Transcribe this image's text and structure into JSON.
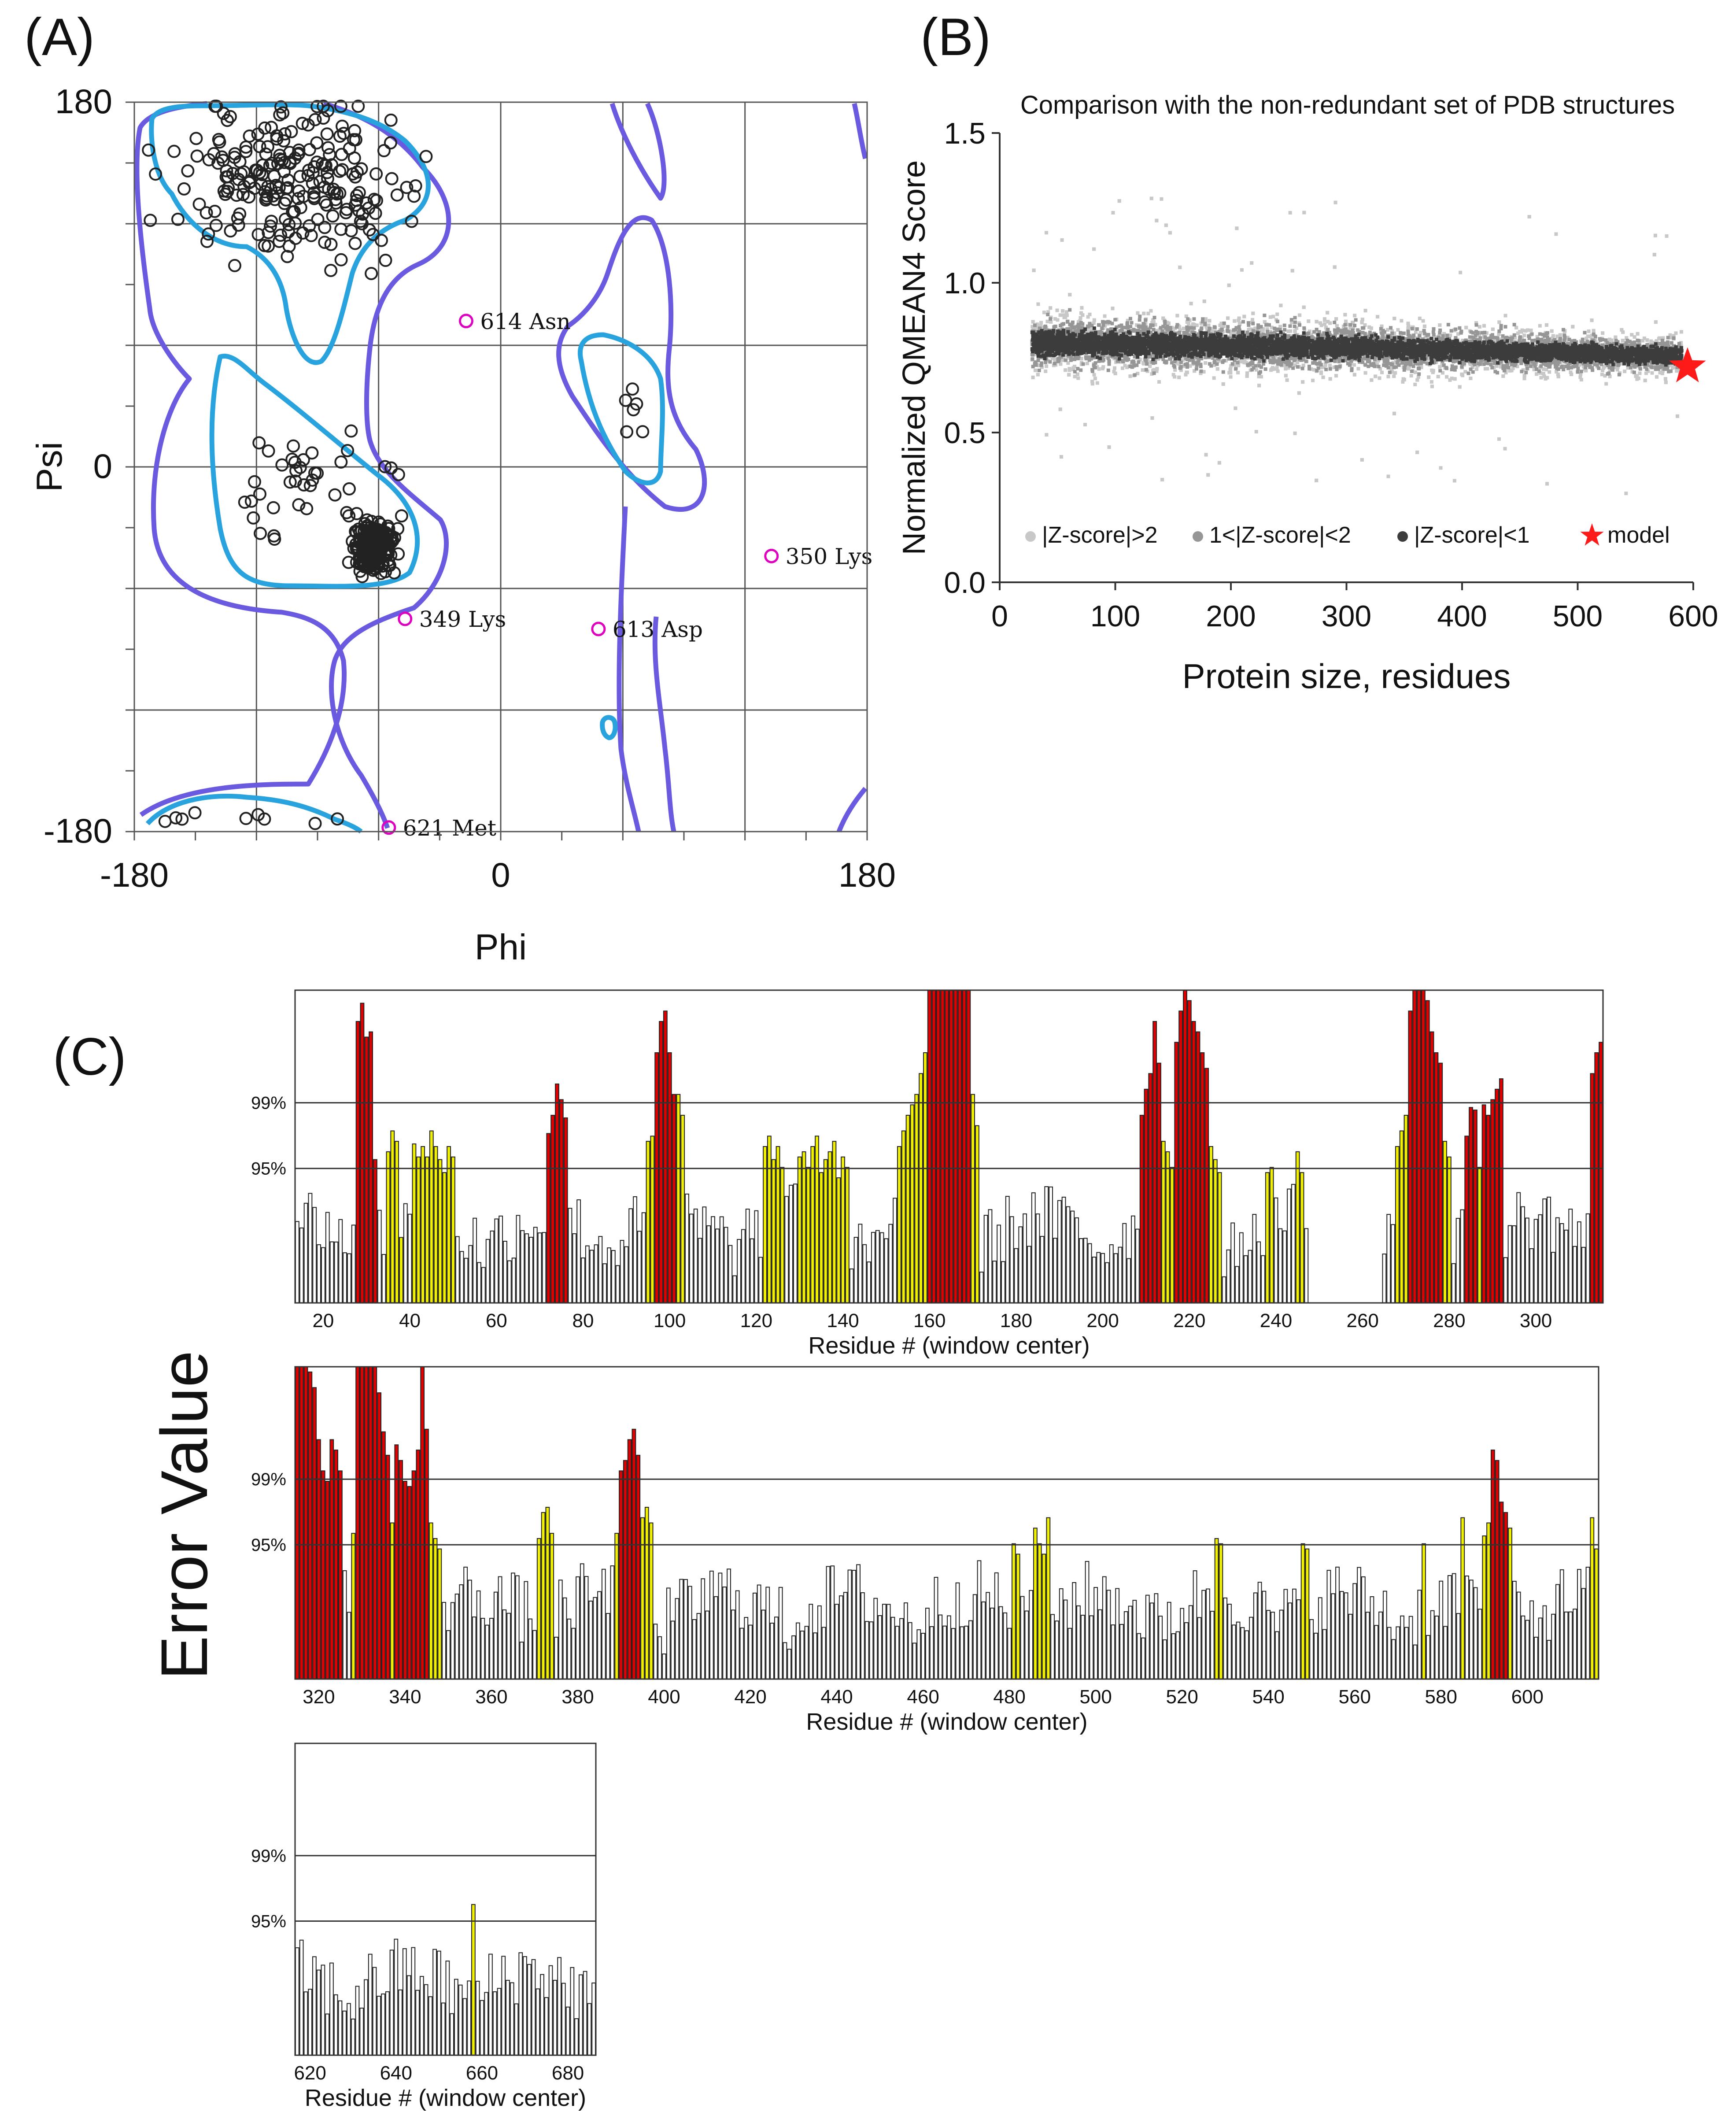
{
  "panel_labels": {
    "a": "(A)",
    "b": "(B)",
    "c": "(C)"
  },
  "chart_data": [
    {
      "id": "ramachandran",
      "type": "scatter",
      "title": "",
      "xlabel": "Phi",
      "ylabel": "Psi",
      "xlim": [
        -180,
        180
      ],
      "ylim": [
        -180,
        180
      ],
      "x_tick_labels": [
        "-180",
        "0",
        "180"
      ],
      "y_tick_labels": [
        "180",
        "0",
        "-180"
      ],
      "grid": true,
      "outlier_color": "#e000c0",
      "favored_contour_color": "#29a3dd",
      "allowed_contour_color": "#6a5ae0",
      "outliers": [
        {
          "phi": -17,
          "psi": 72,
          "label": "614 Asn"
        },
        {
          "phi": 133,
          "psi": -44,
          "label": "350 Lys"
        },
        {
          "phi": -47,
          "psi": -75,
          "label": "349 Lys"
        },
        {
          "phi": 48,
          "psi": -80,
          "label": "613 Asp"
        },
        {
          "phi": -55,
          "psi": -178,
          "label": "621 Met"
        }
      ],
      "clusters": [
        {
          "region": "beta",
          "phi_center": -100,
          "psi_center": 140,
          "phi_spread": 55,
          "psi_spread": 35,
          "count": 230
        },
        {
          "region": "alpha",
          "phi_center": -63,
          "psi_center": -40,
          "phi_spread": 10,
          "psi_spread": 12,
          "count": 200
        },
        {
          "region": "alpha-edge",
          "phi_center": -95,
          "psi_center": -10,
          "phi_spread": 40,
          "psi_spread": 28,
          "count": 40
        },
        {
          "region": "left-alpha",
          "phi_center": 65,
          "psi_center": 30,
          "phi_spread": 8,
          "psi_spread": 15,
          "count": 6
        },
        {
          "region": "bottom",
          "phi_center": -120,
          "psi_center": -172,
          "phi_spread": 45,
          "psi_spread": 5,
          "count": 9
        }
      ]
    },
    {
      "id": "qmean",
      "type": "scatter",
      "title": "Comparison with the non-redundant set of PDB structures",
      "xlabel": "Protein size, residues",
      "ylabel": "Normalized QMEAN4 Score",
      "xlim": [
        0,
        600
      ],
      "ylim": [
        0,
        1.5
      ],
      "x_tick_labels": [
        "0",
        "100",
        "200",
        "300",
        "400",
        "500",
        "600"
      ],
      "y_tick_labels": [
        "0.0",
        "0.5",
        "1.0",
        "1.5"
      ],
      "series": [
        {
          "name": "|Z-score|>2",
          "color": "#c8c8c8",
          "band_half_width": 0.16
        },
        {
          "name": "1<|Z-score|<2",
          "color": "#969696",
          "band_half_width": 0.11
        },
        {
          "name": "|Z-score|<1",
          "color": "#3c3c3c",
          "band_half_width": 0.055
        }
      ],
      "trend": {
        "x": [
          30,
          100,
          200,
          300,
          400,
          500,
          590
        ],
        "y": [
          0.8,
          0.795,
          0.79,
          0.785,
          0.775,
          0.765,
          0.755
        ]
      },
      "model": {
        "name": "model",
        "x": 595,
        "y": 0.72,
        "color": "#ff1a1a"
      }
    },
    {
      "id": "errat",
      "type": "bar",
      "ylabel": "Error Value",
      "xlabel": "Residue # (window center)",
      "threshold_labels": [
        "99%",
        "95%"
      ],
      "colors": {
        "low": "#ffffff",
        "mid": "#f0f000",
        "high": "#e00000"
      },
      "panels": [
        {
          "start": 14,
          "end": 315,
          "x_tick_labels": [
            "20",
            "40",
            "60",
            "80",
            "100",
            "120",
            "140",
            "160",
            "180",
            "200",
            "220",
            "240",
            "260",
            "280",
            "300"
          ],
          "x_ticks": [
            20,
            40,
            60,
            80,
            100,
            120,
            140,
            160,
            180,
            200,
            220,
            240,
            260,
            280,
            300
          ],
          "regions": [
            {
              "s": 28,
              "e": 32,
              "lvl": "high",
              "h": [
                108,
                115,
                102,
                104,
                55
              ]
            },
            {
              "s": 35,
              "e": 38,
              "lvl": "mid",
              "h": [
                58,
                66,
                62
              ]
            },
            {
              "s": 41,
              "e": 50,
              "lvl": "mid",
              "h": [
                61,
                56,
                60,
                56,
                66,
                60,
                55,
                50,
                60,
                56
              ]
            },
            {
              "s": 72,
              "e": 76,
              "lvl": "high",
              "h": [
                65,
                72,
                84,
                78,
                71
              ]
            },
            {
              "s": 95,
              "e": 96,
              "lvl": "mid",
              "h": [
                62,
                64
              ]
            },
            {
              "s": 97,
              "e": 101,
              "lvl": "high",
              "h": [
                96,
                108,
                112,
                96,
                80
              ]
            },
            {
              "s": 102,
              "e": 103,
              "lvl": "mid",
              "h": [
                80,
                72
              ]
            },
            {
              "s": 122,
              "e": 126,
              "lvl": "mid",
              "h": [
                60,
                64,
                55,
                60,
                52
              ]
            },
            {
              "s": 130,
              "e": 141,
              "lvl": "mid",
              "h": [
                56,
                58,
                52,
                60,
                64,
                50,
                55,
                58,
                62,
                48,
                56,
                52
              ]
            },
            {
              "s": 153,
              "e": 159,
              "lvl": "mid",
              "h": [
                60,
                66,
                72,
                76,
                80,
                88,
                96
              ]
            },
            {
              "s": 160,
              "e": 169,
              "lvl": "high",
              "h": [
                120,
                120,
                120,
                120,
                120,
                120,
                120,
                120,
                120,
                120
              ]
            },
            {
              "s": 170,
              "e": 171,
              "lvl": "mid",
              "h": [
                80,
                68
              ]
            },
            {
              "s": 209,
              "e": 213,
              "lvl": "high",
              "h": [
                72,
                82,
                88,
                108,
                92
              ]
            },
            {
              "s": 214,
              "e": 216,
              "lvl": "mid",
              "h": [
                62,
                58,
                52
              ]
            },
            {
              "s": 217,
              "e": 224,
              "lvl": "high",
              "h": [
                100,
                112,
                120,
                116,
                108,
                104,
                96,
                90
              ]
            },
            {
              "s": 225,
              "e": 227,
              "lvl": "mid",
              "h": [
                60,
                55,
                50
              ]
            },
            {
              "s": 238,
              "e": 239,
              "lvl": "mid",
              "h": [
                50,
                52
              ]
            },
            {
              "s": 245,
              "e": 246,
              "lvl": "mid",
              "h": [
                58,
                50
              ]
            },
            {
              "s": 248,
              "e": 264,
              "lvl": "gap",
              "h": []
            },
            {
              "s": 268,
              "e": 270,
              "lvl": "mid",
              "h": [
                60,
                66,
                72
              ]
            },
            {
              "s": 271,
              "e": 278,
              "lvl": "high",
              "h": [
                112,
                120,
                120,
                120,
                116,
                104,
                96,
                92
              ]
            },
            {
              "s": 279,
              "e": 280,
              "lvl": "mid",
              "h": [
                62,
                56
              ]
            },
            {
              "s": 284,
              "e": 286,
              "lvl": "high",
              "h": [
                64,
                75,
                74
              ]
            },
            {
              "s": 287,
              "e": 287,
              "lvl": "mid",
              "h": [
                52
              ]
            },
            {
              "s": 288,
              "e": 292,
              "lvl": "high",
              "h": [
                76,
                72,
                78,
                82,
                86
              ]
            },
            {
              "s": 313,
              "e": 315,
              "lvl": "high",
              "h": [
                88,
                96,
                100
              ]
            }
          ]
        },
        {
          "start": 315,
          "end": 616,
          "x_tick_labels": [
            "320",
            "340",
            "360",
            "380",
            "400",
            "420",
            "440",
            "460",
            "480",
            "500",
            "520",
            "540",
            "560",
            "580",
            "600"
          ],
          "x_ticks": [
            320,
            340,
            360,
            380,
            400,
            420,
            440,
            460,
            480,
            500,
            520,
            540,
            560,
            580,
            600
          ],
          "regions": [
            {
              "s": 315,
              "e": 322,
              "lvl": "high",
              "h": [
                120,
                120,
                120,
                118,
                112,
                92,
                80,
                76
              ]
            },
            {
              "s": 323,
              "e": 325,
              "lvl": "high",
              "h": [
                92,
                88,
                80
              ]
            },
            {
              "s": 328,
              "e": 328,
              "lvl": "mid",
              "h": [
                56
              ]
            },
            {
              "s": 329,
              "e": 336,
              "lvl": "high",
              "h": [
                120,
                120,
                120,
                120,
                120,
                110,
                95,
                86
              ]
            },
            {
              "s": 337,
              "e": 337,
              "lvl": "mid",
              "h": [
                60
              ]
            },
            {
              "s": 338,
              "e": 345,
              "lvl": "high",
              "h": [
                90,
                84,
                76,
                74,
                80,
                88,
                120,
                96
              ]
            },
            {
              "s": 346,
              "e": 348,
              "lvl": "mid",
              "h": [
                60,
                54,
                50
              ]
            },
            {
              "s": 371,
              "e": 374,
              "lvl": "mid",
              "h": [
                54,
                64,
                66,
                56
              ]
            },
            {
              "s": 389,
              "e": 389,
              "lvl": "mid",
              "h": [
                56
              ]
            },
            {
              "s": 390,
              "e": 394,
              "lvl": "high",
              "h": [
                80,
                84,
                92,
                96,
                86
              ]
            },
            {
              "s": 395,
              "e": 397,
              "lvl": "mid",
              "h": [
                62,
                66,
                60
              ]
            },
            {
              "s": 481,
              "e": 482,
              "lvl": "mid",
              "h": [
                52,
                48
              ]
            },
            {
              "s": 486,
              "e": 489,
              "lvl": "mid",
              "h": [
                58,
                52,
                48,
                62
              ]
            },
            {
              "s": 528,
              "e": 529,
              "lvl": "mid",
              "h": [
                54,
                52
              ]
            },
            {
              "s": 548,
              "e": 549,
              "lvl": "mid",
              "h": [
                52,
                50
              ]
            },
            {
              "s": 576,
              "e": 576,
              "lvl": "mid",
              "h": [
                52
              ]
            },
            {
              "s": 585,
              "e": 585,
              "lvl": "mid",
              "h": [
                62
              ]
            },
            {
              "s": 590,
              "e": 591,
              "lvl": "mid",
              "h": [
                55,
                60
              ]
            },
            {
              "s": 592,
              "e": 595,
              "lvl": "high",
              "h": [
                88,
                84,
                68,
                64
              ]
            },
            {
              "s": 596,
              "e": 596,
              "lvl": "mid",
              "h": [
                58
              ]
            },
            {
              "s": 615,
              "e": 616,
              "lvl": "mid",
              "h": [
                62,
                50
              ]
            }
          ]
        },
        {
          "start": 617,
          "end": 686,
          "x_tick_labels": [
            "620",
            "640",
            "660",
            "680"
          ],
          "x_ticks": [
            620,
            640,
            660,
            680
          ],
          "regions": [
            {
              "s": 658,
              "e": 658,
              "lvl": "mid",
              "h": [
                58
              ]
            }
          ]
        }
      ]
    }
  ]
}
